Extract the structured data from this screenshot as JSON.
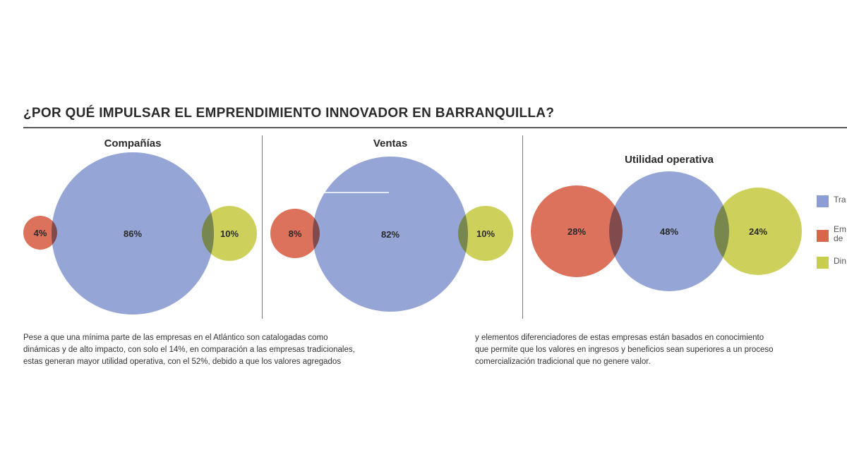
{
  "chart_data": {
    "type": "bubble-venn",
    "title": "¿POR QUÉ IMPULSAR EL EMPRENDIMIENTO INNOVADOR EN BARRANQUILLA?",
    "colors": {
      "tradicionales": "#8c9dd3",
      "emprendimiento": "#d9664d",
      "dinamicas": "#c9cd4e"
    },
    "panels": [
      {
        "title": "Compañías",
        "values": [
          {
            "series": "emprendimiento",
            "value": 4,
            "label": "4%"
          },
          {
            "series": "tradicionales",
            "value": 86,
            "label": "86%"
          },
          {
            "series": "dinamicas",
            "value": 10,
            "label": "10%"
          }
        ]
      },
      {
        "title": "Ventas",
        "values": [
          {
            "series": "emprendimiento",
            "value": 8,
            "label": "8%"
          },
          {
            "series": "tradicionales",
            "value": 82,
            "label": "82%"
          },
          {
            "series": "dinamicas",
            "value": 10,
            "label": "10%"
          }
        ]
      },
      {
        "title": "Utilidad operativa",
        "values": [
          {
            "series": "emprendimiento",
            "value": 28,
            "label": "28%"
          },
          {
            "series": "tradicionales",
            "value": 48,
            "label": "48%"
          },
          {
            "series": "dinamicas",
            "value": 24,
            "label": "24%"
          }
        ]
      }
    ],
    "legend": [
      {
        "series": "tradicionales",
        "lines": [
          "Tra"
        ]
      },
      {
        "series": "emprendimiento",
        "lines": [
          "Em",
          "de"
        ]
      },
      {
        "series": "dinamicas",
        "lines": [
          "Din"
        ]
      }
    ],
    "legend_position": "right"
  },
  "text": {
    "left": [
      "Pese a que una mínima parte de las empresas en el Atlántico son catalogadas como",
      "dinámicas y de alto impacto, con solo el 14%, en comparación a las empresas tradicionales,",
      "estas generan mayor utilidad operativa, con el 52%, debido a que los valores agregados"
    ],
    "right": [
      "y elementos diferenciadores de estas empresas están basados en conocimiento",
      "que permite que los valores en ingresos y beneficios sean superiores a un proceso",
      "comercialización tradicional que no genere valor."
    ]
  }
}
